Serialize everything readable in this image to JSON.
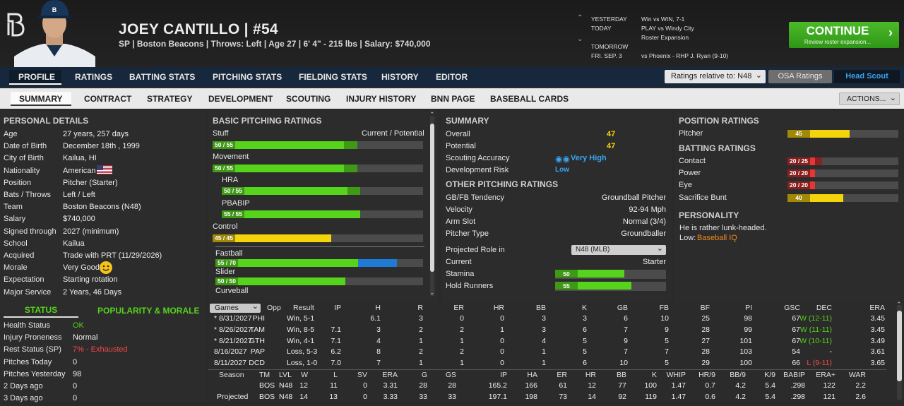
{
  "player": {
    "name": "JOEY CANTILLO  |  #54",
    "info": "SP | Boston Beacons  |  Throws: Left  |  Age 27  |  6' 4\" - 215 lbs  |  Salary: $740,000"
  },
  "schedule": {
    "yesterday_label": "YESTERDAY",
    "yesterday_text": "Win vs WIN, 7-1",
    "today_label": "TODAY",
    "today_text1": "PLAY vs Windy City",
    "today_text2": "Roster Expansion",
    "tomorrow_label": "TOMORROW",
    "tomorrow_date": "FRI. SEP. 3",
    "tomorrow_text": "vs Phoenix - RHP J. Ryan (9-10)"
  },
  "continue": {
    "label": "CONTINUE",
    "sub": "Review roster expansion..."
  },
  "nav1": [
    "PROFILE",
    "RATINGS",
    "BATTING STATS",
    "PITCHING STATS",
    "FIELDING STATS",
    "HISTORY",
    "EDITOR"
  ],
  "controls": {
    "ratings_rel": "Ratings relative to: N48",
    "osa": "OSA Ratings",
    "scout": "Head Scout",
    "actions": "ACTIONS..."
  },
  "nav2": [
    "SUMMARY",
    "CONTRACT",
    "STRATEGY",
    "DEVELOPMENT",
    "SCOUTING",
    "INJURY HISTORY",
    "BNN PAGE",
    "BASEBALL CARDS"
  ],
  "personal": {
    "title": "PERSONAL DETAILS",
    "rows": [
      [
        "Age",
        "27 years, 257 days"
      ],
      [
        "Date of Birth",
        "December 18th , 1999"
      ],
      [
        "City of Birth",
        "Kailua, HI"
      ],
      [
        "Nationality",
        "American"
      ],
      [
        "Position",
        "Pitcher (Starter)"
      ],
      [
        "Bats / Throws",
        "Left / Left"
      ],
      [
        "Team",
        "Boston Beacons (N48)"
      ],
      [
        "Salary",
        "$740,000"
      ],
      [
        "Signed through",
        "2027 (minimum)"
      ],
      [
        "School",
        "Kailua"
      ],
      [
        "Acquired",
        "Trade with PRT (11/29/2026)"
      ],
      [
        "Morale",
        "Very Good"
      ],
      [
        "Expectation",
        "Starting rotation"
      ],
      [
        "Major Service",
        "2 Years, 46 Days"
      ]
    ]
  },
  "status": {
    "tab1": "STATUS",
    "tab2": "POPULARITY & MORALE",
    "rows": [
      [
        "Health Status",
        "OK"
      ],
      [
        "Injury Proneness",
        "Normal"
      ],
      [
        "Rest Status (SP)",
        "7% - Exhausted"
      ],
      [
        "Pitches Today",
        "0"
      ],
      [
        "Pitches Yesterday",
        "98"
      ],
      [
        "2 Days ago",
        "0"
      ],
      [
        "3 Days ago",
        "0"
      ]
    ]
  },
  "basic": {
    "title": "BASIC PITCHING RATINGS",
    "cp": "Current / Potential",
    "stuff": "Stuff",
    "stuff_v": "50 / 55",
    "movement": "Movement",
    "movement_v": "50 / 55",
    "hra": "HRA",
    "hra_v": "50 / 55",
    "pbabip": "PBABIP",
    "pbabip_v": "55 / 55",
    "control": "Control",
    "control_v": "45 / 45",
    "fastball": "Fastball",
    "fastball_v": "55 / 70",
    "slider": "Slider",
    "slider_v": "50 / 50",
    "curveball": "Curveball"
  },
  "summary": {
    "title": "SUMMARY",
    "overall_l": "Overall",
    "overall": "47",
    "potential_l": "Potential",
    "potential": "47",
    "scout_l": "Scouting Accuracy",
    "scout": "Very High",
    "devrisk_l": "Development Risk",
    "devrisk": "Low",
    "other_title": "OTHER PITCHING RATINGS",
    "gbfb_l": "GB/FB Tendency",
    "gbfb": "Groundball Pitcher",
    "velo_l": "Velocity",
    "velo": "92-94 Mph",
    "arm_l": "Arm Slot",
    "arm": "Normal (3/4)",
    "ptype_l": "Pitcher Type",
    "ptype": "Groundballer",
    "proj_l": "Projected Role in",
    "proj_sel": "N48 (MLB)",
    "current_l": "Current",
    "current": "Starter",
    "stamina_l": "Stamina",
    "stamina": "50",
    "hold_l": "Hold Runners",
    "hold": "55"
  },
  "position": {
    "title": "POSITION RATINGS",
    "pitcher_l": "Pitcher",
    "pitcher": "45",
    "batting_title": "BATTING RATINGS",
    "contact_l": "Contact",
    "contact": "20 / 25",
    "power_l": "Power",
    "power": "20 / 20",
    "eye_l": "Eye",
    "eye": "20 / 20",
    "bunt_l": "Sacrifice Bunt",
    "bunt": "40",
    "pers_title": "PERSONALITY",
    "pers1": "He is rather lunk-headed.",
    "pers2_l": "Low:",
    "pers2": "Baseball IQ"
  },
  "games": {
    "select": "Games",
    "headers": [
      "Opp",
      "Result",
      "IP",
      "H",
      "R",
      "ER",
      "HR",
      "BB",
      "K",
      "GB",
      "FB",
      "BF",
      "PI",
      "GSC",
      "DEC",
      "ERA"
    ],
    "rows": [
      [
        "* 8/31/2027",
        "PHI",
        "Win, 5-1",
        "6.1",
        "3",
        "0",
        "0",
        "3",
        "3",
        "6",
        "10",
        "25",
        "98",
        "67",
        "W (12-11)",
        "3.45"
      ],
      [
        "* 8/26/2027",
        "TAM",
        "Win, 8-5",
        "7.1",
        "3",
        "2",
        "2",
        "1",
        "3",
        "6",
        "7",
        "9",
        "28",
        "99",
        "67",
        "W (11-11)",
        "3.45"
      ],
      [
        "* 8/21/2027",
        "GTH",
        "Win, 4-1",
        "7.1",
        "4",
        "1",
        "1",
        "0",
        "4",
        "5",
        "9",
        "5",
        "27",
        "101",
        "67",
        "W (10-11)",
        "3.49"
      ],
      [
        "8/16/2027",
        "PAP",
        "Loss, 5-3",
        "6.2",
        "8",
        "2",
        "2",
        "0",
        "1",
        "5",
        "7",
        "7",
        "28",
        "103",
        "54",
        "-",
        "3.61"
      ],
      [
        "8/11/2027",
        "DCD",
        "Loss, 1-0",
        "7.0",
        "7",
        "1",
        "1",
        "0",
        "1",
        "6",
        "10",
        "5",
        "29",
        "100",
        "66",
        "L (9-11)",
        "3.65"
      ]
    ],
    "season_headers": [
      "Season",
      "TM",
      "LVL",
      "W",
      "L",
      "SV",
      "ERA",
      "G",
      "GS",
      "IP",
      "HA",
      "ER",
      "HR",
      "BB",
      "K",
      "WHIP",
      "HR/9",
      "BB/9",
      "K/9",
      "BABIP",
      "ERA+",
      "WAR"
    ],
    "season_rows": [
      [
        "",
        "BOS",
        "N48",
        "12",
        "11",
        "0",
        "3.31",
        "28",
        "28",
        "165.2",
        "166",
        "61",
        "12",
        "77",
        "100",
        "1.47",
        "0.7",
        "4.2",
        "5.4",
        ".298",
        "122",
        "2.2"
      ],
      [
        "Projected",
        "BOS",
        "N48",
        "14",
        "13",
        "0",
        "3.33",
        "33",
        "33",
        "197.1",
        "198",
        "73",
        "14",
        "92",
        "119",
        "1.47",
        "0.6",
        "4.2",
        "5.4",
        ".298",
        "121",
        "2.6"
      ]
    ]
  },
  "colors": {
    "green": "#56d41c",
    "yellow": "#f4d40a",
    "red": "#e83535",
    "blue": "#1f7ad6",
    "orange": "#f08a1c"
  },
  "ratings": {
    "stuff": [
      50,
      55
    ],
    "movement": [
      50,
      55
    ],
    "hra": [
      50,
      55
    ],
    "pbabip": [
      55,
      55
    ],
    "control": [
      45,
      45
    ],
    "fastball": [
      55,
      70
    ],
    "slider": [
      50,
      50
    ],
    "stamina": 50,
    "hold": 55,
    "pitcher": 45,
    "contact": [
      20,
      25
    ],
    "power": [
      20,
      20
    ],
    "eye": [
      20,
      20
    ],
    "bunt": 40
  }
}
